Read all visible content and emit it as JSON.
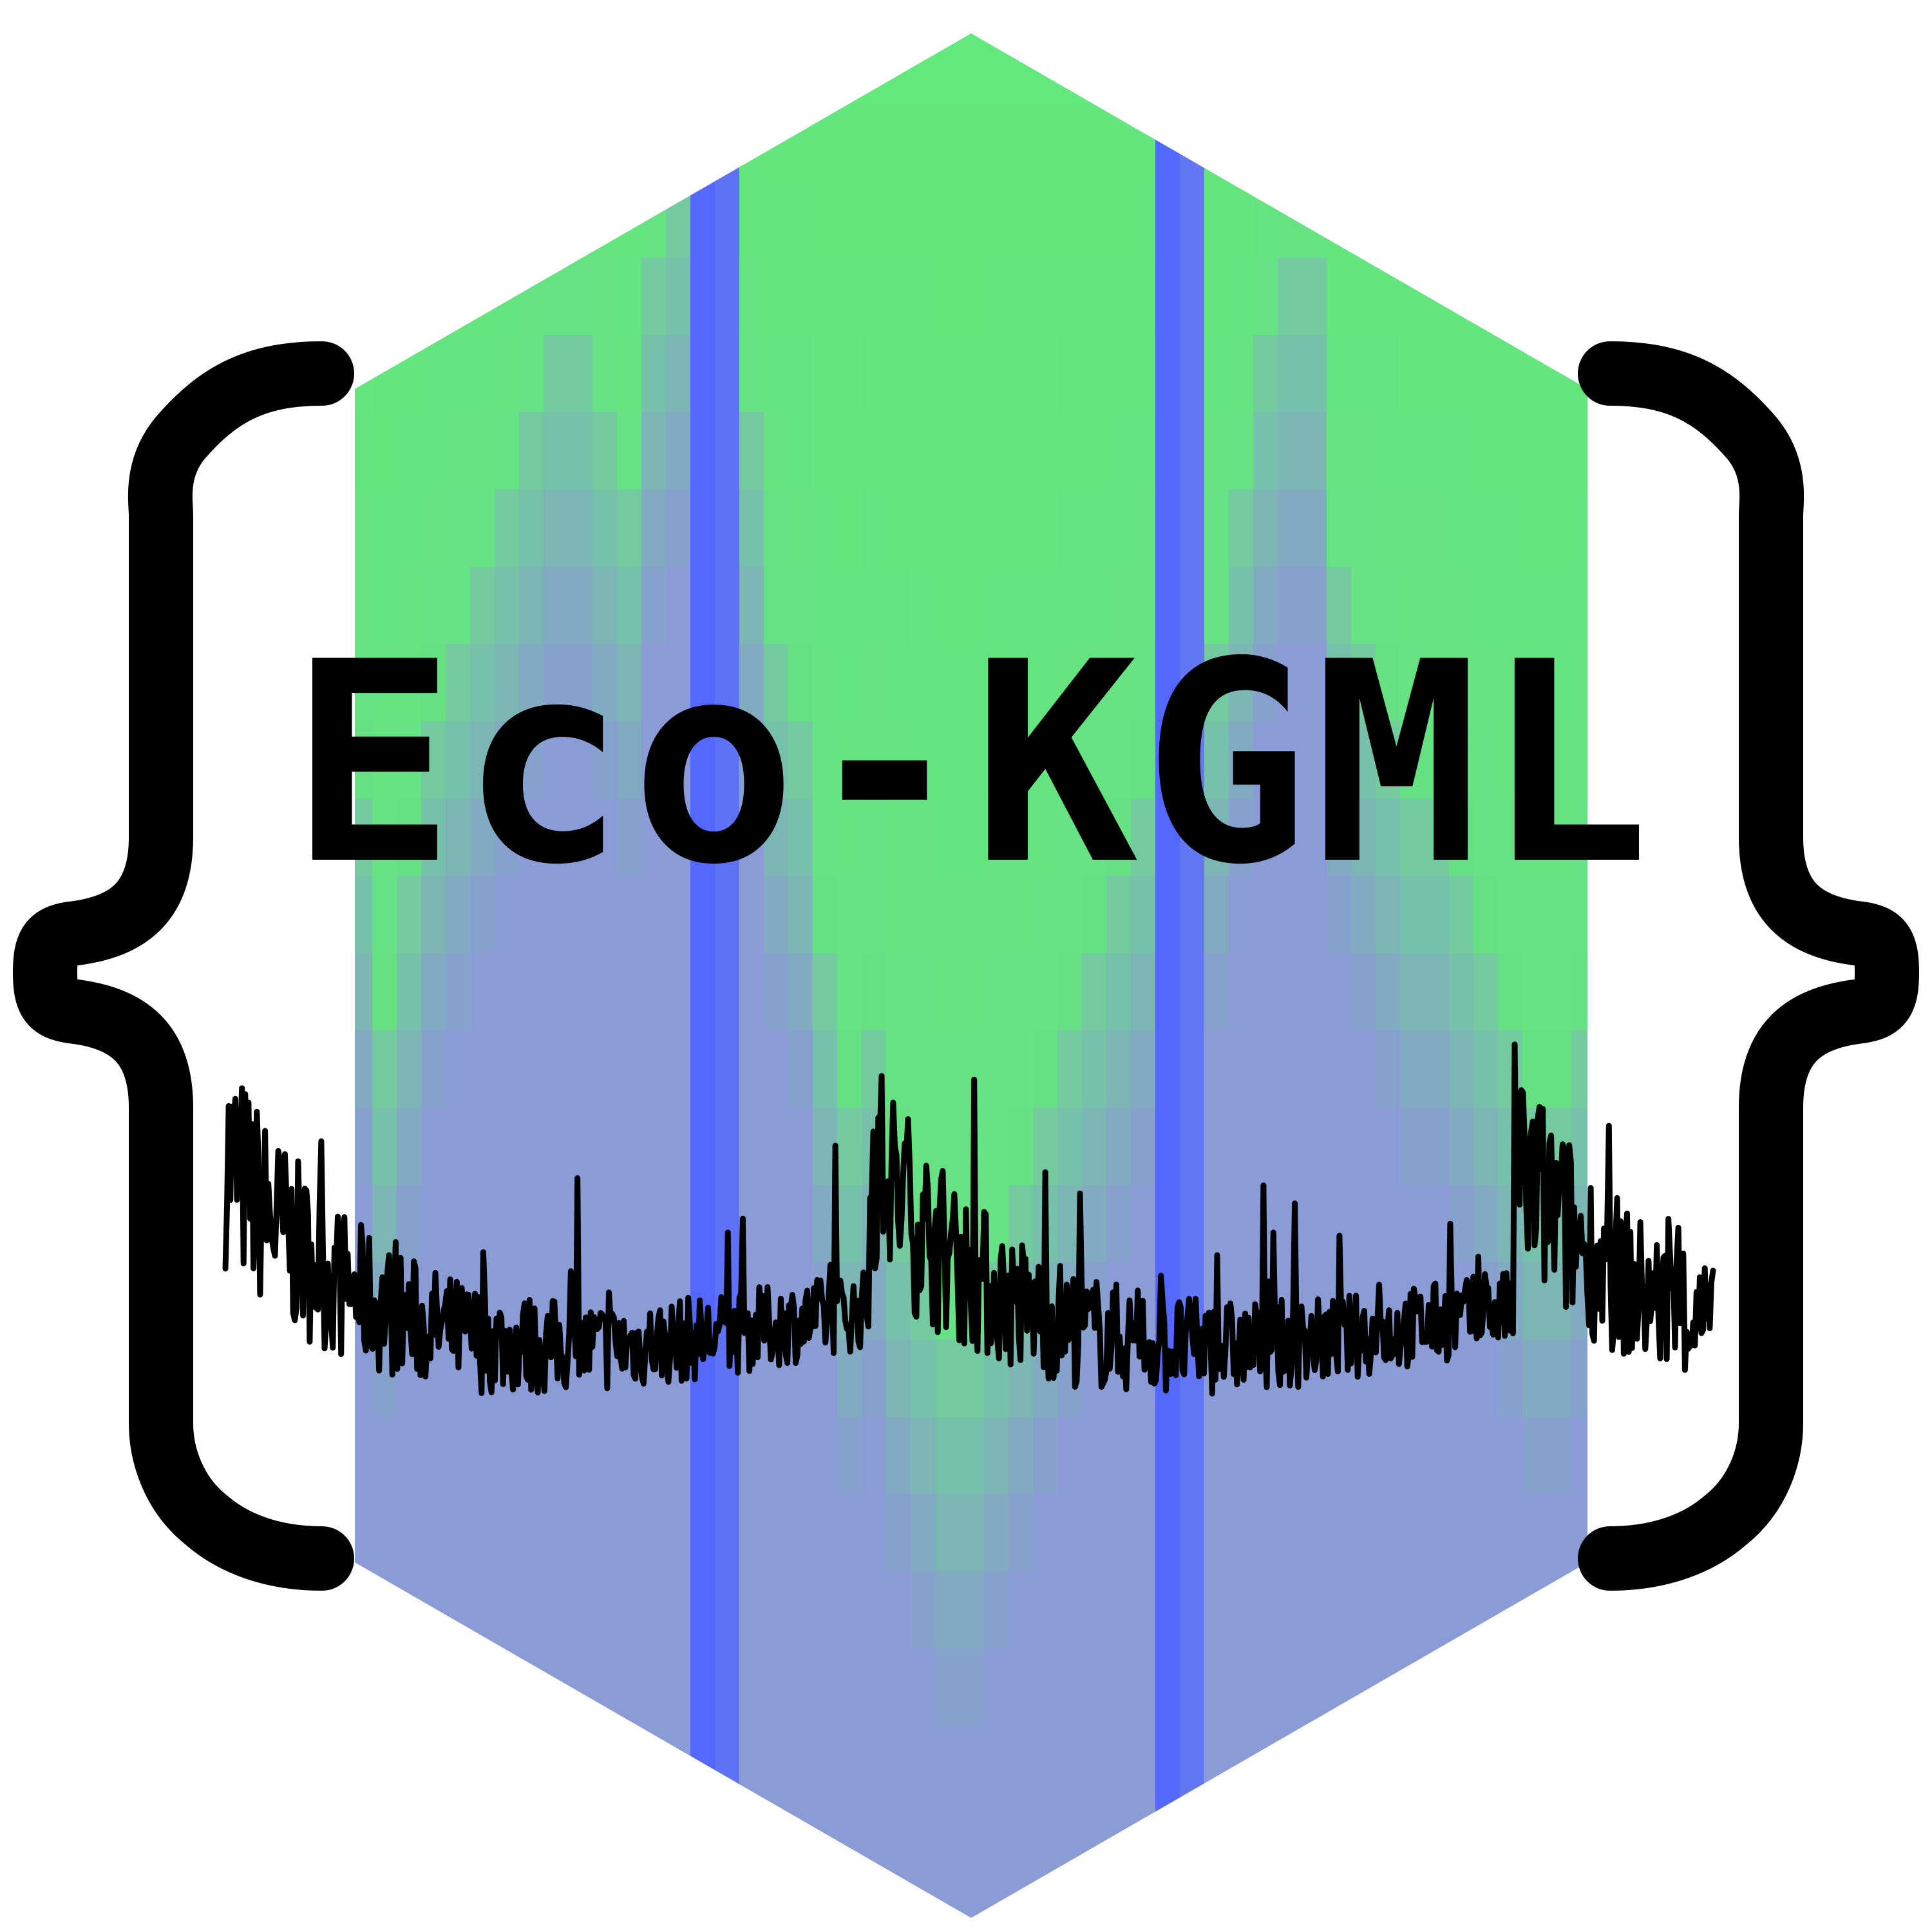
{
  "logo": {
    "title": "Eco-KGML",
    "colors": {
      "green": "#5ef071",
      "blue": "#5468ff",
      "slate_blue": "#8a9bd5",
      "ink": "#000000",
      "background": "#ffffff"
    },
    "icons": [
      "hexagon-badge",
      "left-curly-brace",
      "right-curly-brace",
      "time-series-line"
    ]
  }
}
